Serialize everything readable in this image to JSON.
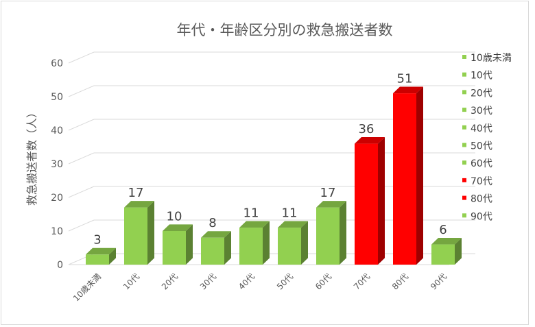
{
  "chart_data": {
    "type": "bar",
    "title": "年代・年齢区分別の救急搬送者数",
    "xlabel": "",
    "ylabel": "救急搬送者数（人）",
    "ylim": [
      0,
      60
    ],
    "yticks": [
      0,
      10,
      20,
      30,
      40,
      50,
      60
    ],
    "grid": true,
    "legend_position": "right",
    "categories": [
      "10歳未満",
      "10代",
      "20代",
      "30代",
      "40代",
      "50代",
      "60代",
      "70代",
      "80代",
      "90代"
    ],
    "values": [
      3,
      17,
      10,
      8,
      11,
      11,
      17,
      36,
      51,
      6
    ],
    "colors": [
      "#92d050",
      "#92d050",
      "#92d050",
      "#92d050",
      "#92d050",
      "#92d050",
      "#92d050",
      "#ff0000",
      "#ff0000",
      "#92d050"
    ],
    "style": "3d-column"
  }
}
